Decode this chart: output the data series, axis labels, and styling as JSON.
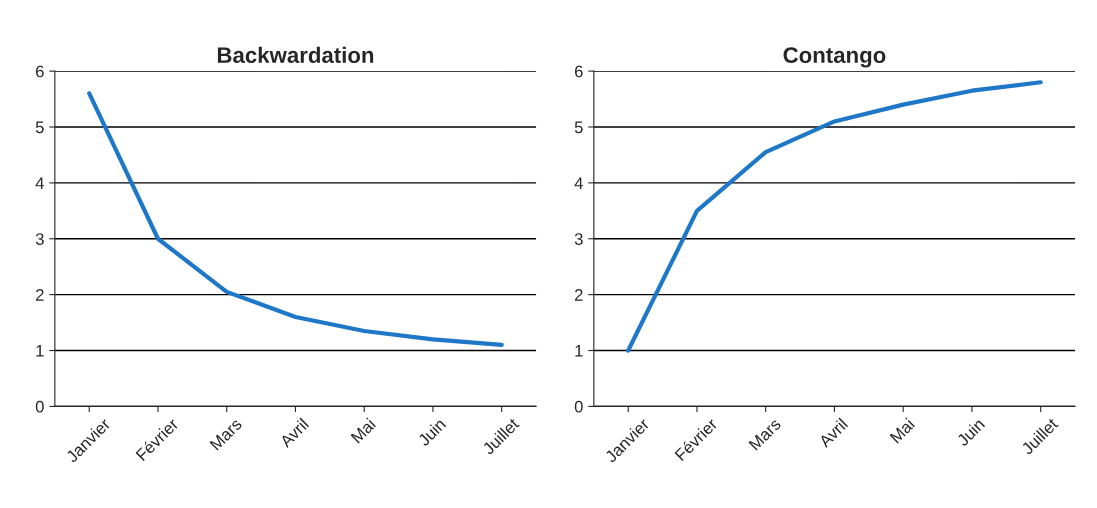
{
  "chart_data": [
    {
      "type": "line",
      "title": "Backwardation",
      "categories": [
        "Janvier",
        "Février",
        "Mars",
        "Avril",
        "Mai",
        "Juin",
        "Juillet"
      ],
      "series": [
        {
          "color": "#1f77c8",
          "values": [
            5.6,
            3.0,
            2.05,
            1.6,
            1.35,
            1.2,
            1.1
          ]
        }
      ],
      "ylim": [
        0,
        6
      ],
      "yticks": [
        0,
        1,
        2,
        3,
        4,
        5,
        6
      ],
      "grid": "y"
    },
    {
      "type": "line",
      "title": "Contango",
      "categories": [
        "Janvier",
        "Février",
        "Mars",
        "Avril",
        "Mai",
        "Juin",
        "Juillet"
      ],
      "series": [
        {
          "color": "#1f77c8",
          "values": [
            1.0,
            3.5,
            4.55,
            5.1,
            5.4,
            5.65,
            5.8
          ]
        }
      ],
      "ylim": [
        0,
        6
      ],
      "yticks": [
        0,
        1,
        2,
        3,
        4,
        5,
        6
      ],
      "grid": "y"
    }
  ]
}
